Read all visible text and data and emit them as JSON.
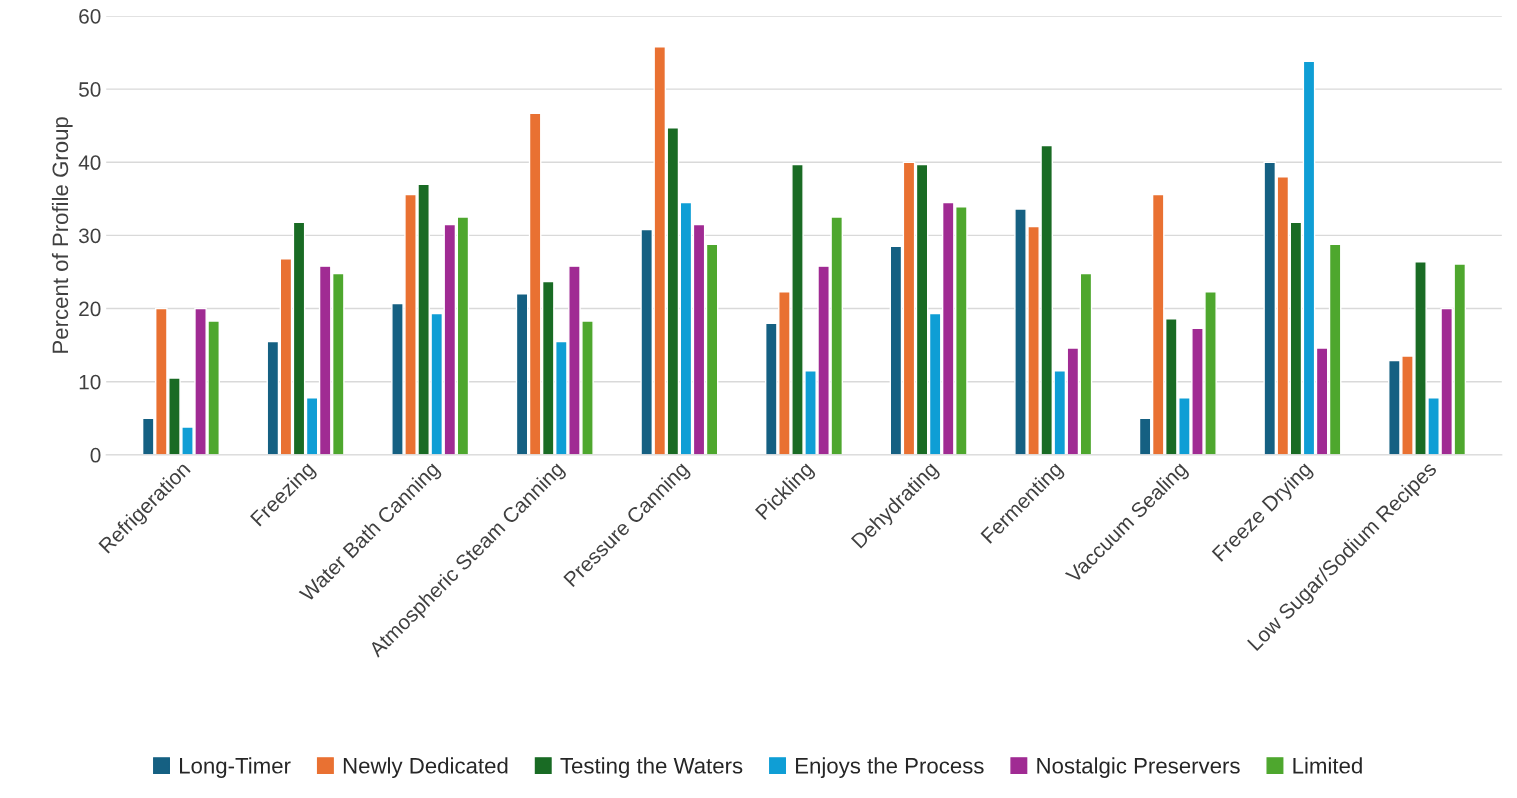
{
  "chart_data": {
    "type": "bar",
    "ylabel": "Percent of Profile Group",
    "categories": [
      "Refrigeration",
      "Freezing",
      "Water Bath Canning",
      "Atmospheric Steam Canning",
      "Pressure Canning",
      "Pickling",
      "Dehydrating",
      "Fermenting",
      "Vaccuum Sealing",
      "Freeze Drying",
      "Low Sugar/Sodium Recipes"
    ],
    "series": [
      {
        "name": "Long-Timer",
        "color": "#156082",
        "values": [
          5,
          15.5,
          20.7,
          22,
          30.8,
          18,
          28.5,
          33.6,
          5,
          40,
          12.9
        ]
      },
      {
        "name": "Newly Dedicated",
        "color": "#e97132",
        "values": [
          20,
          26.8,
          35.6,
          46.7,
          55.8,
          22.3,
          40,
          31.2,
          35.6,
          38,
          13.5
        ]
      },
      {
        "name": "Testing the Waters",
        "color": "#196b24",
        "values": [
          10.5,
          31.8,
          37,
          23.7,
          44.7,
          39.7,
          39.7,
          42.3,
          18.6,
          31.8,
          26.4
        ]
      },
      {
        "name": "Enjoys the Process",
        "color": "#0f9ed5",
        "values": [
          3.8,
          7.8,
          19.3,
          15.5,
          34.5,
          11.5,
          19.3,
          11.5,
          7.8,
          53.8,
          7.8
        ]
      },
      {
        "name": "Nostalgic Preservers",
        "color": "#a02b93",
        "values": [
          20,
          25.8,
          31.5,
          25.8,
          31.5,
          25.8,
          34.5,
          14.6,
          17.3,
          14.6,
          20
        ]
      },
      {
        "name": "Limited",
        "color": "#4ea72e",
        "values": [
          18.3,
          24.8,
          32.5,
          18.3,
          28.8,
          32.5,
          33.9,
          24.8,
          22.3,
          28.8,
          26.1
        ]
      }
    ],
    "ylim": [
      0,
      60
    ],
    "yticks": [
      0,
      10,
      20,
      30,
      40,
      50,
      60
    ],
    "grid": "y",
    "legend": "bottom"
  }
}
